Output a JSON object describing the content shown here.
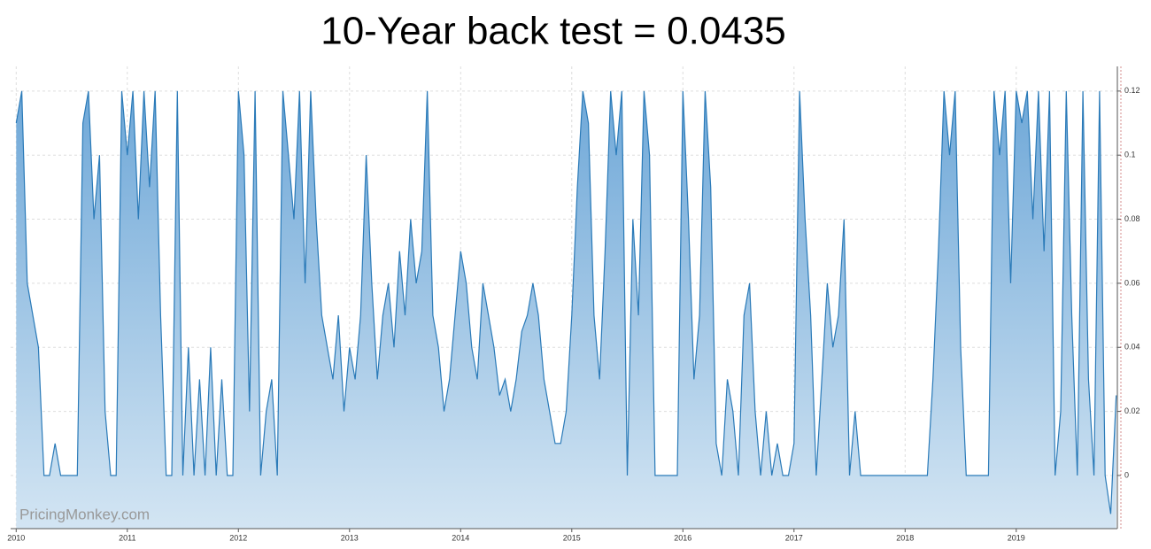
{
  "chart_data": {
    "type": "area",
    "title": "10-Year back test = 0.0435",
    "annotations": [
      "PricingMonkey.com"
    ],
    "x": [
      2010,
      2010.05,
      2010.1,
      2010.15,
      2010.2,
      2010.25,
      2010.3,
      2010.35,
      2010.4,
      2010.45,
      2010.5,
      2010.55,
      2010.6,
      2010.65,
      2010.7,
      2010.75,
      2010.8,
      2010.85,
      2010.9,
      2010.95,
      2011,
      2011.05,
      2011.1,
      2011.15,
      2011.2,
      2011.25,
      2011.3,
      2011.35,
      2011.4,
      2011.45,
      2011.5,
      2011.55,
      2011.6,
      2011.65,
      2011.7,
      2011.75,
      2011.8,
      2011.85,
      2011.9,
      2011.95,
      2012,
      2012.05,
      2012.1,
      2012.15,
      2012.2,
      2012.25,
      2012.3,
      2012.35,
      2012.4,
      2012.45,
      2012.5,
      2012.55,
      2012.6,
      2012.65,
      2012.7,
      2012.75,
      2012.8,
      2012.85,
      2012.9,
      2012.95,
      2013,
      2013.05,
      2013.1,
      2013.15,
      2013.2,
      2013.25,
      2013.3,
      2013.35,
      2013.4,
      2013.45,
      2013.5,
      2013.55,
      2013.6,
      2013.65,
      2013.7,
      2013.75,
      2013.8,
      2013.85,
      2013.9,
      2013.95,
      2014,
      2014.05,
      2014.1,
      2014.15,
      2014.2,
      2014.25,
      2014.3,
      2014.35,
      2014.4,
      2014.45,
      2014.5,
      2014.55,
      2014.6,
      2014.65,
      2014.7,
      2014.75,
      2014.8,
      2014.85,
      2014.9,
      2014.95,
      2015,
      2015.05,
      2015.1,
      2015.15,
      2015.2,
      2015.25,
      2015.3,
      2015.35,
      2015.4,
      2015.45,
      2015.5,
      2015.55,
      2015.6,
      2015.65,
      2015.7,
      2015.75,
      2015.8,
      2015.85,
      2015.9,
      2015.95,
      2016,
      2016.05,
      2016.1,
      2016.15,
      2016.2,
      2016.25,
      2016.3,
      2016.35,
      2016.4,
      2016.45,
      2016.5,
      2016.55,
      2016.6,
      2016.65,
      2016.7,
      2016.75,
      2016.8,
      2016.85,
      2016.9,
      2016.95,
      2017,
      2017.05,
      2017.1,
      2017.15,
      2017.2,
      2017.25,
      2017.3,
      2017.35,
      2017.4,
      2017.45,
      2017.5,
      2017.55,
      2017.6,
      2017.65,
      2017.7,
      2017.75,
      2017.8,
      2017.85,
      2017.9,
      2017.95,
      2018,
      2018.05,
      2018.1,
      2018.15,
      2018.2,
      2018.25,
      2018.3,
      2018.35,
      2018.4,
      2018.45,
      2018.5,
      2018.55,
      2018.6,
      2018.65,
      2018.7,
      2018.75,
      2018.8,
      2018.85,
      2018.9,
      2018.95,
      2019,
      2019.05,
      2019.1,
      2019.15,
      2019.2,
      2019.25,
      2019.3,
      2019.35,
      2019.4,
      2019.45,
      2019.5,
      2019.55,
      2019.6,
      2019.65,
      2019.7,
      2019.75,
      2019.8,
      2019.85,
      2019.9
    ],
    "series": [
      {
        "color": "#2a7ab8",
        "values": [
          0.11,
          0.12,
          0.06,
          0.05,
          0.04,
          0,
          0,
          0.01,
          0,
          0,
          0,
          0,
          0.11,
          0.12,
          0.08,
          0.1,
          0.02,
          0,
          0,
          0.12,
          0.1,
          0.12,
          0.08,
          0.12,
          0.09,
          0.12,
          0.05,
          0,
          0,
          0.12,
          0,
          0.04,
          0,
          0.03,
          0,
          0.04,
          0,
          0.03,
          0,
          0,
          0.12,
          0.1,
          0.02,
          0.12,
          0,
          0.02,
          0.03,
          0,
          0.12,
          0.1,
          0.08,
          0.12,
          0.06,
          0.12,
          0.08,
          0.05,
          0.04,
          0.03,
          0.05,
          0.02,
          0.04,
          0.03,
          0.05,
          0.1,
          0.06,
          0.03,
          0.05,
          0.06,
          0.04,
          0.07,
          0.05,
          0.08,
          0.06,
          0.07,
          0.12,
          0.05,
          0.04,
          0.02,
          0.03,
          0.05,
          0.07,
          0.06,
          0.04,
          0.03,
          0.06,
          0.05,
          0.04,
          0.025,
          0.03,
          0.02,
          0.03,
          0.045,
          0.05,
          0.06,
          0.05,
          0.03,
          0.02,
          0.01,
          0.01,
          0.02,
          0.05,
          0.09,
          0.12,
          0.11,
          0.05,
          0.03,
          0.07,
          0.12,
          0.1,
          0.12,
          0,
          0.08,
          0.05,
          0.12,
          0.1,
          0,
          0,
          0,
          0,
          0,
          0.12,
          0.08,
          0.03,
          0.05,
          0.12,
          0.09,
          0.01,
          0,
          0.03,
          0.02,
          0,
          0.05,
          0.06,
          0.02,
          0,
          0.02,
          0,
          0.01,
          0,
          0,
          0.01,
          0.12,
          0.08,
          0.05,
          0,
          0.03,
          0.06,
          0.04,
          0.05,
          0.08,
          0,
          0.02,
          0,
          0,
          0,
          0,
          0,
          0,
          0,
          0,
          0,
          0,
          0,
          0,
          0,
          0.03,
          0.07,
          0.12,
          0.1,
          0.12,
          0.04,
          0,
          0,
          0,
          0,
          0,
          0.12,
          0.1,
          0.12,
          0.06,
          0.12,
          0.11,
          0.12,
          0.08,
          0.12,
          0.07,
          0.12,
          0,
          0.02,
          0.12,
          0.05,
          0,
          0.12,
          0.03,
          0,
          0.12,
          0,
          -0.012,
          0.025
        ]
      }
    ],
    "xlim": [
      2009.95,
      2019.91
    ],
    "xticks": [
      2010,
      2011,
      2012,
      2013,
      2014,
      2015,
      2016,
      2017,
      2018,
      2019
    ],
    "ylim": [
      -0.0166,
      0.1277
    ],
    "yticks": [
      0,
      0.02,
      0.04,
      0.06,
      0.08,
      0.1,
      0.12
    ],
    "grid": true
  }
}
